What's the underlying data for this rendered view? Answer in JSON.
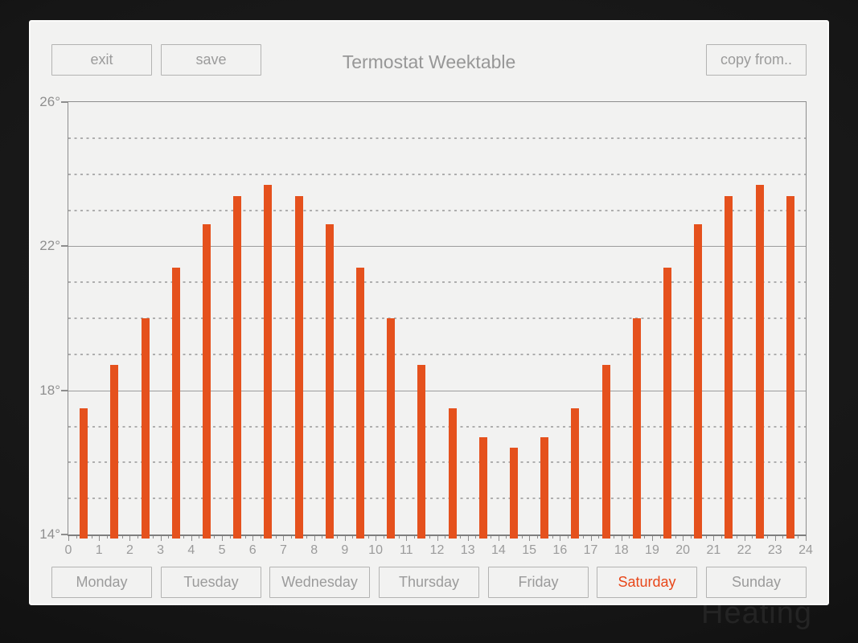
{
  "header": {
    "title": "Termostat Weektable"
  },
  "toolbar": {
    "exit_label": "exit",
    "save_label": "save",
    "copy_from_label": "copy from.."
  },
  "background": {
    "watermark": "Heating"
  },
  "chart_data": {
    "type": "bar",
    "title": "",
    "xlabel": "",
    "ylabel": "",
    "x_unit": "hour",
    "categories": [
      0,
      1,
      2,
      3,
      4,
      5,
      6,
      7,
      8,
      9,
      10,
      11,
      12,
      13,
      14,
      15,
      16,
      17,
      18,
      19,
      20,
      21,
      22,
      23
    ],
    "values": [
      17.5,
      18.7,
      20.0,
      21.4,
      22.6,
      23.4,
      23.7,
      23.4,
      22.6,
      21.4,
      20.0,
      18.7,
      17.5,
      16.7,
      16.4,
      16.7,
      17.5,
      18.7,
      20.0,
      21.4,
      22.6,
      23.4,
      23.7,
      23.4
    ],
    "xlim": [
      0,
      24
    ],
    "ylim": [
      14,
      26
    ],
    "x_tick_labels": [
      "0",
      "1",
      "2",
      "3",
      "4",
      "5",
      "6",
      "7",
      "8",
      "9",
      "10",
      "11",
      "12",
      "13",
      "14",
      "15",
      "16",
      "17",
      "18",
      "19",
      "20",
      "21",
      "22",
      "23",
      "24"
    ],
    "x_minor_tick_step": 0.25,
    "y_major_ticks": [
      26,
      22,
      18,
      14
    ],
    "y_tick_suffix": "°",
    "solid_gridlines": [
      26,
      22,
      18,
      14
    ],
    "dashed_gridlines": [
      25,
      24,
      23,
      21,
      20,
      19,
      17,
      16,
      15
    ],
    "bar_color": "#e5511d",
    "grid": true,
    "legend_position": "none"
  },
  "days": [
    {
      "label": "Monday",
      "active": false
    },
    {
      "label": "Tuesday",
      "active": false
    },
    {
      "label": "Wednesday",
      "active": false
    },
    {
      "label": "Thursday",
      "active": false
    },
    {
      "label": "Friday",
      "active": false
    },
    {
      "label": "Saturday",
      "active": true
    },
    {
      "label": "Sunday",
      "active": false
    }
  ],
  "colors": {
    "accent": "#e5511d",
    "active_day_text": "#e8471a",
    "panel_bg": "#f2f2f1",
    "button_border": "#b3b3b2",
    "button_text": "#9b9b9b",
    "axis": "#8d8d8d"
  }
}
